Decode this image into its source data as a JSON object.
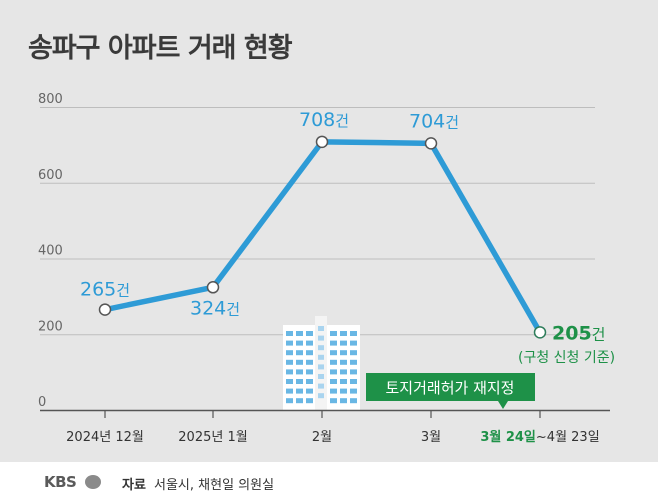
{
  "page_title": "송파구 아파트 거래 현황",
  "source": {
    "label": "자료",
    "text": "서울시, 채현일 의원실"
  },
  "brand": {
    "logo": "KBS"
  },
  "colors": {
    "background": "#e6e6e6",
    "line": "#2e9bd6",
    "highlight": "#1e9148",
    "axis": "#555555",
    "grid": "#bdbdbd"
  },
  "chart_data": {
    "type": "line",
    "title": "송파구 아파트 거래 현황",
    "ylim": [
      0,
      800
    ],
    "yticks": [
      0,
      200,
      400,
      600,
      800
    ],
    "x": [
      "2024년 12월",
      "2025년 1월",
      "2월",
      "3월",
      "3월 24일~4월 23일"
    ],
    "x_labels": [
      {
        "text": "2024년 12월"
      },
      {
        "text": "2025년 1월"
      },
      {
        "text": "2월"
      },
      {
        "text": "3월"
      },
      {
        "text": "~4월 23일",
        "highlight_text": "3월 24일"
      }
    ],
    "series": [
      {
        "name": "송파구 아파트 거래",
        "values": [
          265,
          324,
          708,
          704,
          205
        ]
      }
    ],
    "point_labels": [
      "265건",
      "324건",
      "708건",
      "704건",
      "205건"
    ],
    "annotations": {
      "last_point_note": "(구청 신청 기준)",
      "callout": "토지거래허가 재지정"
    }
  }
}
